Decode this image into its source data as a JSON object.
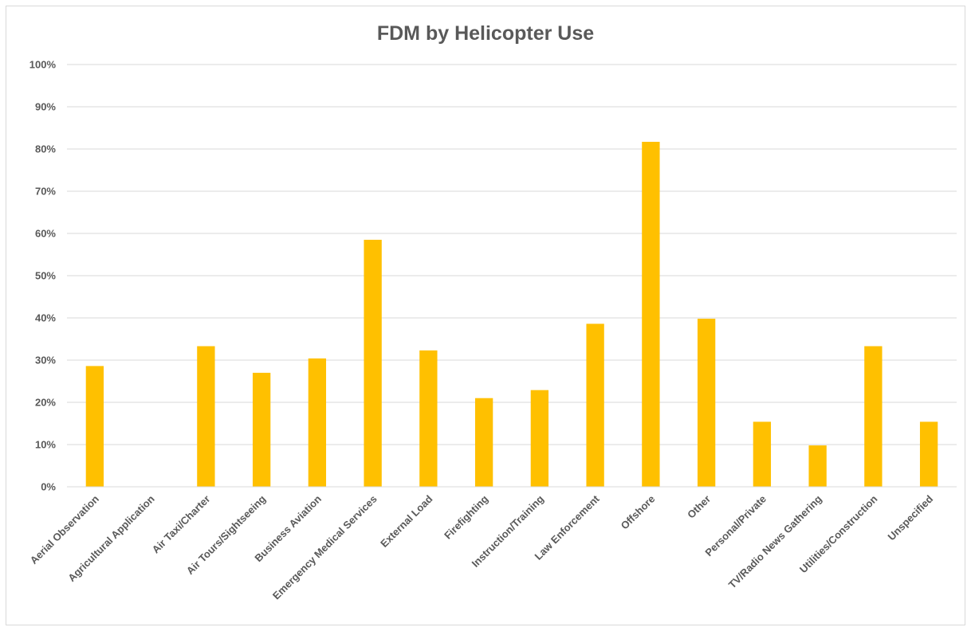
{
  "chart_data": {
    "type": "bar",
    "title": "FDM by Helicopter Use",
    "xlabel": "",
    "ylabel": "",
    "ylim": [
      0,
      100
    ],
    "y_tick_format": "percent",
    "y_ticks": [
      0,
      10,
      20,
      30,
      40,
      50,
      60,
      70,
      80,
      90,
      100
    ],
    "grid": true,
    "legend": "none",
    "bar_color": "#ffc000",
    "categories": [
      "Aerial Observation",
      "Agricultural Application",
      "Air Taxi/Charter",
      "Air Tours/Sightseeing",
      "Business Aviation",
      "Emergency Medical Services",
      "External Load",
      "Firefighting",
      "Instruction/Training",
      "Law Enforcement",
      "Offshore",
      "Other",
      "Personal/Private",
      "TV/Radio News Gathering",
      "Utilities/Construction",
      "Unspecified"
    ],
    "values": [
      28.6,
      0,
      33.3,
      27.0,
      30.4,
      58.5,
      32.3,
      21.0,
      22.9,
      38.6,
      81.7,
      39.8,
      15.4,
      9.8,
      33.3,
      15.4
    ]
  }
}
